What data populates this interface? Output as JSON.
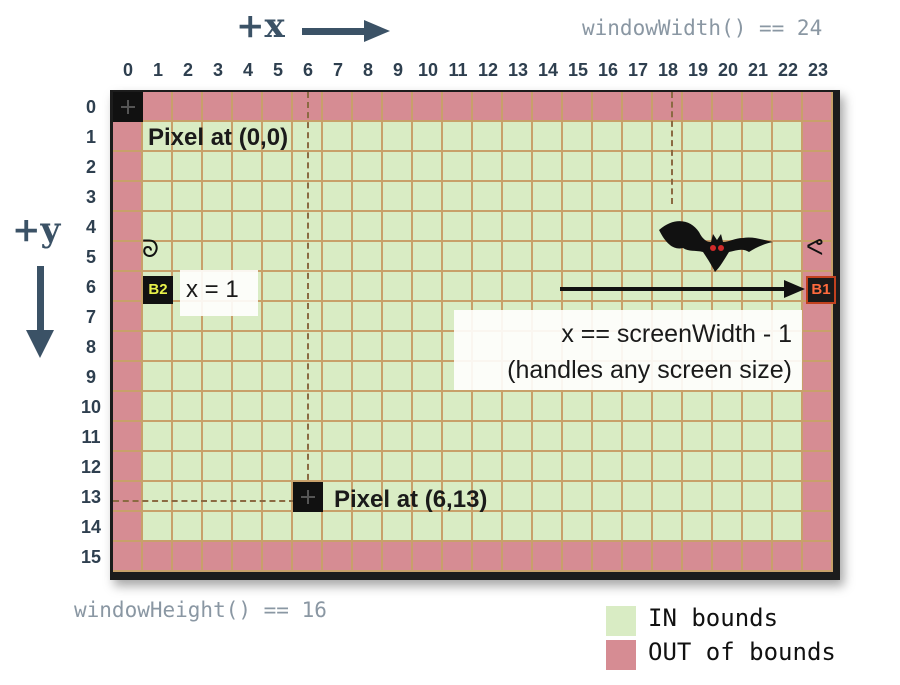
{
  "axes": {
    "x_label": "+x",
    "y_label": "+y"
  },
  "window": {
    "width_expr": "windowWidth() == 24",
    "height_expr": "windowHeight() == 16"
  },
  "grid": {
    "columns": [
      "0",
      "1",
      "2",
      "3",
      "4",
      "5",
      "6",
      "7",
      "8",
      "9",
      "10",
      "11",
      "12",
      "13",
      "14",
      "15",
      "16",
      "17",
      "18",
      "19",
      "20",
      "21",
      "22",
      "23"
    ],
    "rows": [
      "0",
      "1",
      "2",
      "3",
      "4",
      "5",
      "6",
      "7",
      "8",
      "9",
      "10",
      "11",
      "12",
      "13",
      "14",
      "15"
    ],
    "in_color": "#d9ecc4",
    "out_color": "#d68c93"
  },
  "annotations": {
    "pixel_00": "Pixel at (0,0)",
    "pixel_613": "Pixel at (6,13)",
    "x_equals_1": "x = 1",
    "screen_line1": "x == screenWidth - 1",
    "screen_line2": "(handles any screen size)"
  },
  "badges": {
    "b2": "B2",
    "b1": "B1",
    "b2_color": "#e8f04a",
    "b1_color": "#ff6a3d"
  },
  "icons": {
    "bat": "bat-icon",
    "b2_face": "happy-face-icon",
    "b1_face": "angry-face-icon",
    "x_arrow": "arrow-right-icon",
    "y_arrow": "arrow-down-icon"
  },
  "legend": {
    "in_label": "IN bounds",
    "out_label": "OUT of bounds"
  }
}
